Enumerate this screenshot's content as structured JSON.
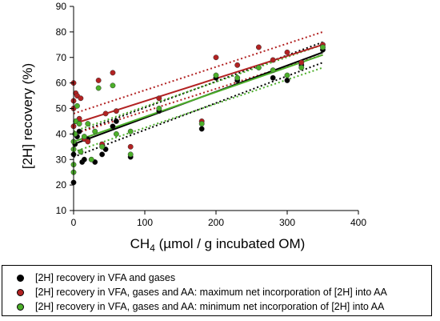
{
  "chart_data": {
    "type": "scatter",
    "xlabel_main": "CH",
    "xlabel_sub": "4",
    "xlabel_rest": " (µmol / g incubated OM)",
    "ylabel": "[2H] recovery (%)",
    "xlim": [
      0,
      400
    ],
    "ylim": [
      10,
      90
    ],
    "xticks": [
      0,
      100,
      200,
      300,
      400
    ],
    "yticks": [
      10,
      20,
      30,
      40,
      50,
      60,
      70,
      80,
      90
    ],
    "grid": false,
    "legend_position": "bottom",
    "series": [
      {
        "name": "[2H] recovery in VFA and gases",
        "color": "#000000",
        "points": [
          [
            0,
            21
          ],
          [
            0,
            32
          ],
          [
            2,
            36
          ],
          [
            5,
            39
          ],
          [
            8,
            41
          ],
          [
            12,
            29
          ],
          [
            15,
            30
          ],
          [
            20,
            38
          ],
          [
            30,
            29
          ],
          [
            40,
            32
          ],
          [
            45,
            34
          ],
          [
            55,
            43
          ],
          [
            60,
            45
          ],
          [
            80,
            31
          ],
          [
            120,
            49
          ],
          [
            180,
            42
          ],
          [
            200,
            62
          ],
          [
            230,
            61
          ],
          [
            280,
            62
          ],
          [
            300,
            61
          ],
          [
            320,
            67
          ],
          [
            350,
            73
          ]
        ],
        "fit": [
          [
            0,
            36
          ],
          [
            350,
            72
          ]
        ],
        "ci_lower": [
          [
            0,
            31
          ],
          [
            350,
            68
          ]
        ],
        "ci_upper": [
          [
            0,
            40
          ],
          [
            350,
            76
          ]
        ]
      },
      {
        "name": "[2H] recovery in VFA, gases and AA: maximum net incorporation of [2H] into AA",
        "color": "#b22222",
        "points": [
          [
            0,
            60
          ],
          [
            0,
            53
          ],
          [
            0,
            50
          ],
          [
            0,
            43
          ],
          [
            3,
            56
          ],
          [
            5,
            55
          ],
          [
            8,
            46
          ],
          [
            10,
            54
          ],
          [
            15,
            38
          ],
          [
            20,
            37
          ],
          [
            35,
            61
          ],
          [
            40,
            36
          ],
          [
            45,
            48
          ],
          [
            55,
            64
          ],
          [
            60,
            49
          ],
          [
            80,
            35
          ],
          [
            120,
            54
          ],
          [
            180,
            45
          ],
          [
            200,
            70
          ],
          [
            230,
            67
          ],
          [
            260,
            74
          ],
          [
            280,
            69
          ],
          [
            300,
            72
          ],
          [
            320,
            68
          ],
          [
            350,
            75
          ]
        ],
        "fit": [
          [
            0,
            44
          ],
          [
            350,
            75
          ]
        ],
        "ci_lower": [
          [
            0,
            40
          ],
          [
            350,
            71
          ]
        ],
        "ci_upper": [
          [
            0,
            48
          ],
          [
            350,
            80
          ]
        ]
      },
      {
        "name": "[2H] recovery in VFA, gases and AA: minimum net incorporation of [2H] into AA",
        "color": "#4caf2a",
        "points": [
          [
            0,
            25
          ],
          [
            0,
            28
          ],
          [
            0,
            34
          ],
          [
            0,
            37
          ],
          [
            2,
            40
          ],
          [
            3,
            45
          ],
          [
            5,
            51
          ],
          [
            8,
            44
          ],
          [
            10,
            33
          ],
          [
            15,
            39
          ],
          [
            20,
            44
          ],
          [
            25,
            30
          ],
          [
            30,
            41
          ],
          [
            35,
            58
          ],
          [
            40,
            35
          ],
          [
            55,
            59
          ],
          [
            60,
            40
          ],
          [
            80,
            41
          ],
          [
            80,
            32
          ],
          [
            120,
            50
          ],
          [
            180,
            44
          ],
          [
            200,
            63
          ],
          [
            230,
            62
          ],
          [
            260,
            66
          ],
          [
            280,
            65
          ],
          [
            300,
            63
          ],
          [
            320,
            66
          ],
          [
            350,
            74
          ]
        ],
        "fit": [
          [
            0,
            37
          ],
          [
            350,
            71
          ]
        ],
        "ci_lower": [
          [
            0,
            33
          ],
          [
            350,
            66
          ]
        ],
        "ci_upper": [
          [
            0,
            41
          ],
          [
            350,
            75
          ]
        ]
      }
    ]
  }
}
